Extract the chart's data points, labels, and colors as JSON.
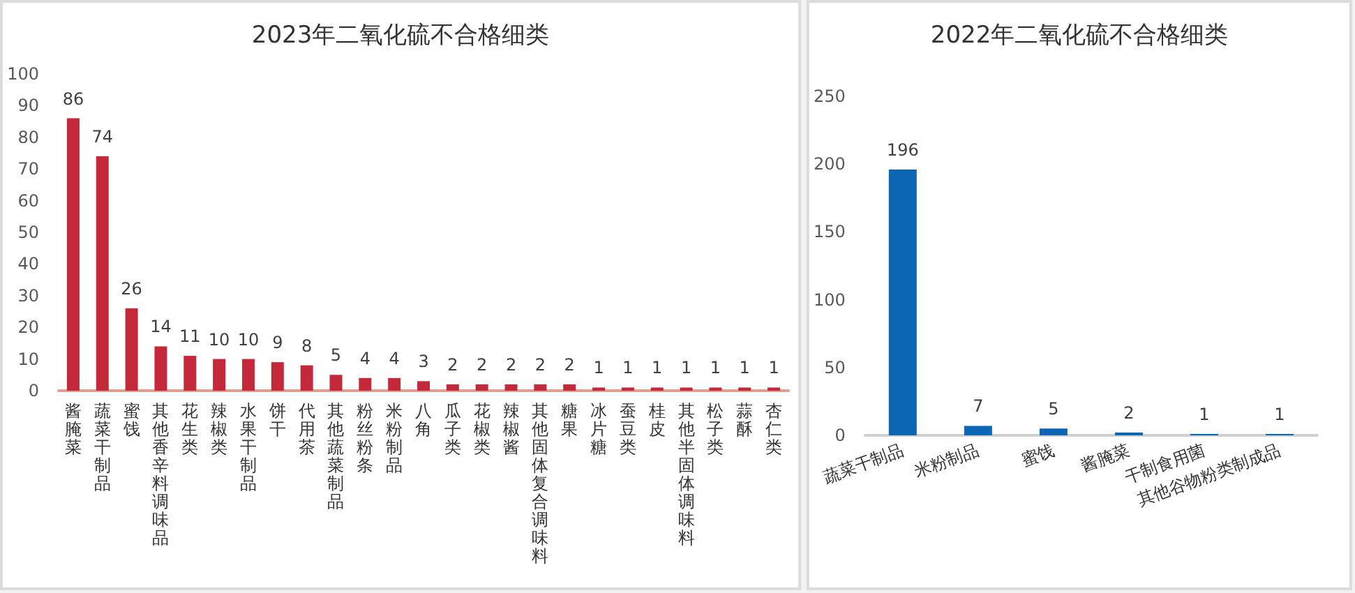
{
  "chart_data": [
    {
      "type": "bar",
      "title": "2023年二氧化硫不合格细类",
      "categories": [
        "酱腌菜",
        "蔬菜干制品",
        "蜜饯",
        "其他香辛料调味品",
        "花生类",
        "辣椒类",
        "水果干制品",
        "饼干",
        "代用茶",
        "其他蔬菜制品",
        "粉丝粉条",
        "米粉制品",
        "八角",
        "瓜子类",
        "花椒类",
        "辣椒酱",
        "其他固体复合调味料",
        "糖果",
        "冰片糖",
        "蚕豆类",
        "桂皮",
        "其他半固体调味料",
        "松子类",
        "蒜酥",
        "杏仁类"
      ],
      "values": [
        86,
        74,
        26,
        14,
        11,
        10,
        10,
        9,
        8,
        5,
        4,
        4,
        3,
        2,
        2,
        2,
        2,
        2,
        1,
        1,
        1,
        1,
        1,
        1,
        1
      ],
      "color": "#c3293a",
      "ylim": [
        0,
        100
      ],
      "yticks": [
        0,
        10,
        20,
        30,
        40,
        50,
        60,
        70,
        80,
        90,
        100
      ],
      "data_labels": true,
      "grid": false
    },
    {
      "type": "bar",
      "title": "2022年二氧化硫不合格细类",
      "categories": [
        "蔬菜干制品",
        "米粉制品",
        "蜜饯",
        "酱腌菜",
        "干制食用菌",
        "其他谷物粉类制成品"
      ],
      "values": [
        196,
        7,
        5,
        2,
        1,
        1
      ],
      "color": "#0d66b4",
      "ylim": [
        0,
        250
      ],
      "yticks": [
        0,
        50,
        100,
        150,
        200,
        250
      ],
      "data_labels": true,
      "grid": false
    }
  ]
}
